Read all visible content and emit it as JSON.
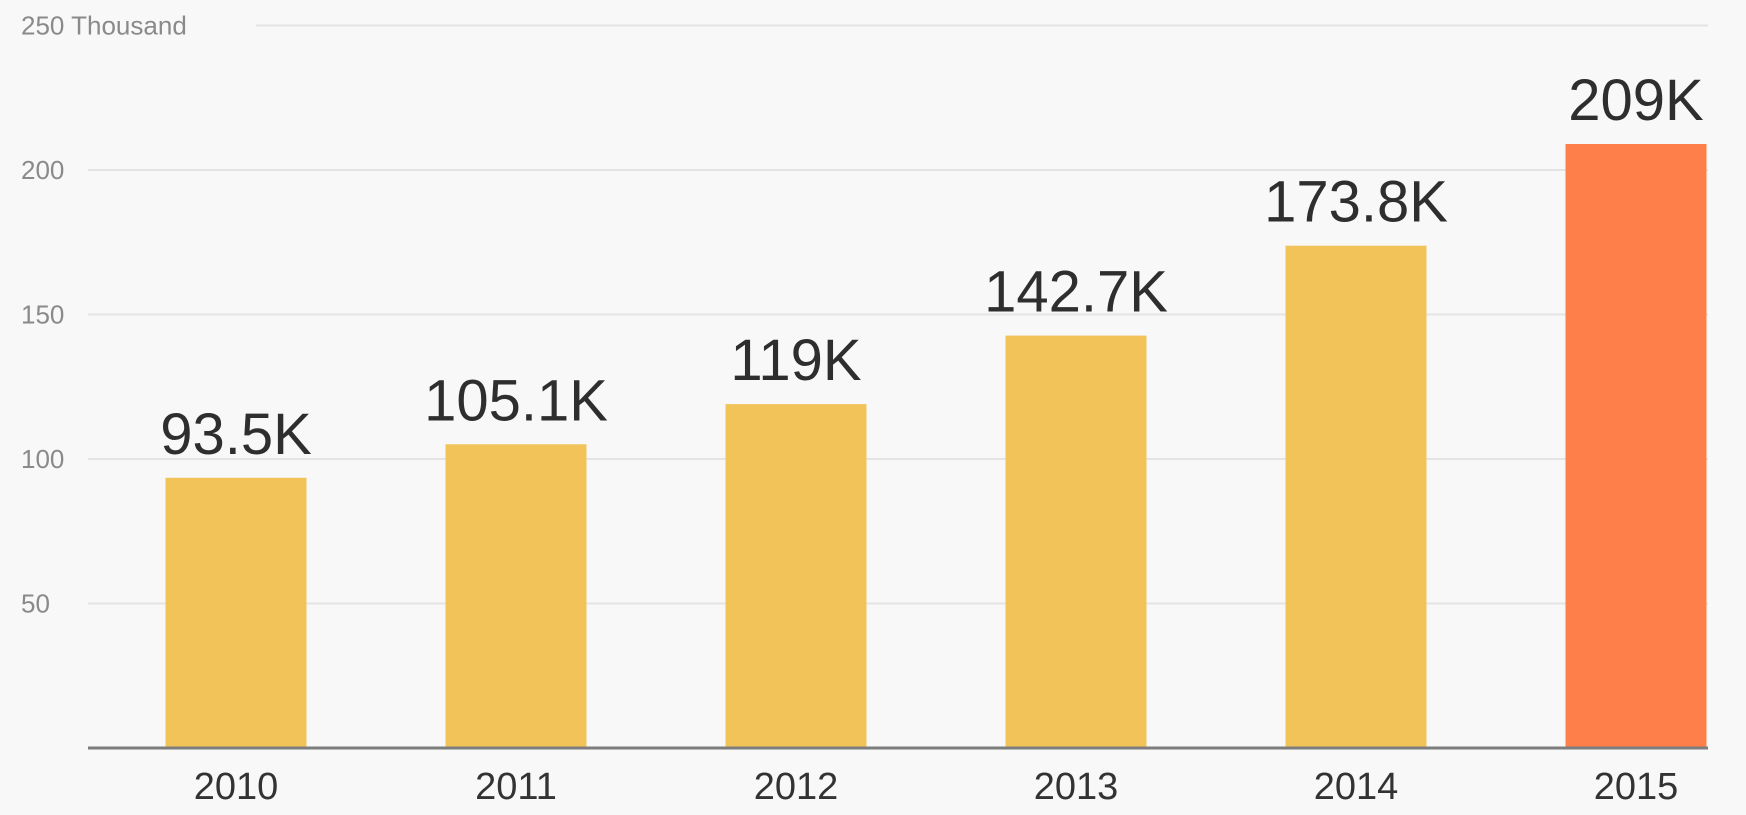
{
  "chart_data": {
    "type": "bar",
    "categories": [
      "2010",
      "2011",
      "2012",
      "2013",
      "2014",
      "2015"
    ],
    "values": [
      93.5,
      105.1,
      119,
      142.7,
      173.8,
      209
    ],
    "data_labels": [
      "93.5K",
      "105.1K",
      "119K",
      "142.7K",
      "173.8K",
      "209K"
    ],
    "y_unit_label": "250 Thousand",
    "y_ticks": [
      50,
      100,
      150,
      200,
      250
    ],
    "y_tick_labels": [
      "50",
      "100",
      "150",
      "200",
      "250 Thousand"
    ],
    "ylim": [
      0,
      250
    ],
    "grid": true,
    "legend": "none",
    "colors": {
      "bar": "#f2c358",
      "highlight": "#ff7f4a",
      "background": "#f8f8f8"
    },
    "highlight_index": 5
  }
}
